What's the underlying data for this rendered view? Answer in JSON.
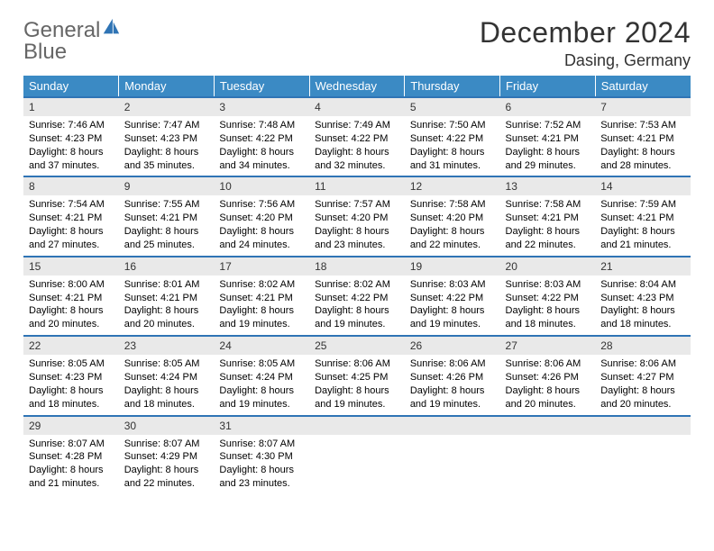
{
  "brand": {
    "word1": "General",
    "word2": "Blue"
  },
  "title": "December 2024",
  "location": "Dasing, Germany",
  "colors": {
    "header_bg": "#3b8ac4",
    "header_text": "#ffffff",
    "rule": "#2f74b5",
    "daynum_bg": "#e9e9e9",
    "text": "#000000",
    "logo_gray": "#666666",
    "logo_blue": "#2f74b5"
  },
  "weekdays": [
    "Sunday",
    "Monday",
    "Tuesday",
    "Wednesday",
    "Thursday",
    "Friday",
    "Saturday"
  ],
  "days": [
    {
      "n": "1",
      "sr": "Sunrise: 7:46 AM",
      "ss": "Sunset: 4:23 PM",
      "d1": "Daylight: 8 hours",
      "d2": "and 37 minutes."
    },
    {
      "n": "2",
      "sr": "Sunrise: 7:47 AM",
      "ss": "Sunset: 4:23 PM",
      "d1": "Daylight: 8 hours",
      "d2": "and 35 minutes."
    },
    {
      "n": "3",
      "sr": "Sunrise: 7:48 AM",
      "ss": "Sunset: 4:22 PM",
      "d1": "Daylight: 8 hours",
      "d2": "and 34 minutes."
    },
    {
      "n": "4",
      "sr": "Sunrise: 7:49 AM",
      "ss": "Sunset: 4:22 PM",
      "d1": "Daylight: 8 hours",
      "d2": "and 32 minutes."
    },
    {
      "n": "5",
      "sr": "Sunrise: 7:50 AM",
      "ss": "Sunset: 4:22 PM",
      "d1": "Daylight: 8 hours",
      "d2": "and 31 minutes."
    },
    {
      "n": "6",
      "sr": "Sunrise: 7:52 AM",
      "ss": "Sunset: 4:21 PM",
      "d1": "Daylight: 8 hours",
      "d2": "and 29 minutes."
    },
    {
      "n": "7",
      "sr": "Sunrise: 7:53 AM",
      "ss": "Sunset: 4:21 PM",
      "d1": "Daylight: 8 hours",
      "d2": "and 28 minutes."
    },
    {
      "n": "8",
      "sr": "Sunrise: 7:54 AM",
      "ss": "Sunset: 4:21 PM",
      "d1": "Daylight: 8 hours",
      "d2": "and 27 minutes."
    },
    {
      "n": "9",
      "sr": "Sunrise: 7:55 AM",
      "ss": "Sunset: 4:21 PM",
      "d1": "Daylight: 8 hours",
      "d2": "and 25 minutes."
    },
    {
      "n": "10",
      "sr": "Sunrise: 7:56 AM",
      "ss": "Sunset: 4:20 PM",
      "d1": "Daylight: 8 hours",
      "d2": "and 24 minutes."
    },
    {
      "n": "11",
      "sr": "Sunrise: 7:57 AM",
      "ss": "Sunset: 4:20 PM",
      "d1": "Daylight: 8 hours",
      "d2": "and 23 minutes."
    },
    {
      "n": "12",
      "sr": "Sunrise: 7:58 AM",
      "ss": "Sunset: 4:20 PM",
      "d1": "Daylight: 8 hours",
      "d2": "and 22 minutes."
    },
    {
      "n": "13",
      "sr": "Sunrise: 7:58 AM",
      "ss": "Sunset: 4:21 PM",
      "d1": "Daylight: 8 hours",
      "d2": "and 22 minutes."
    },
    {
      "n": "14",
      "sr": "Sunrise: 7:59 AM",
      "ss": "Sunset: 4:21 PM",
      "d1": "Daylight: 8 hours",
      "d2": "and 21 minutes."
    },
    {
      "n": "15",
      "sr": "Sunrise: 8:00 AM",
      "ss": "Sunset: 4:21 PM",
      "d1": "Daylight: 8 hours",
      "d2": "and 20 minutes."
    },
    {
      "n": "16",
      "sr": "Sunrise: 8:01 AM",
      "ss": "Sunset: 4:21 PM",
      "d1": "Daylight: 8 hours",
      "d2": "and 20 minutes."
    },
    {
      "n": "17",
      "sr": "Sunrise: 8:02 AM",
      "ss": "Sunset: 4:21 PM",
      "d1": "Daylight: 8 hours",
      "d2": "and 19 minutes."
    },
    {
      "n": "18",
      "sr": "Sunrise: 8:02 AM",
      "ss": "Sunset: 4:22 PM",
      "d1": "Daylight: 8 hours",
      "d2": "and 19 minutes."
    },
    {
      "n": "19",
      "sr": "Sunrise: 8:03 AM",
      "ss": "Sunset: 4:22 PM",
      "d1": "Daylight: 8 hours",
      "d2": "and 19 minutes."
    },
    {
      "n": "20",
      "sr": "Sunrise: 8:03 AM",
      "ss": "Sunset: 4:22 PM",
      "d1": "Daylight: 8 hours",
      "d2": "and 18 minutes."
    },
    {
      "n": "21",
      "sr": "Sunrise: 8:04 AM",
      "ss": "Sunset: 4:23 PM",
      "d1": "Daylight: 8 hours",
      "d2": "and 18 minutes."
    },
    {
      "n": "22",
      "sr": "Sunrise: 8:05 AM",
      "ss": "Sunset: 4:23 PM",
      "d1": "Daylight: 8 hours",
      "d2": "and 18 minutes."
    },
    {
      "n": "23",
      "sr": "Sunrise: 8:05 AM",
      "ss": "Sunset: 4:24 PM",
      "d1": "Daylight: 8 hours",
      "d2": "and 18 minutes."
    },
    {
      "n": "24",
      "sr": "Sunrise: 8:05 AM",
      "ss": "Sunset: 4:24 PM",
      "d1": "Daylight: 8 hours",
      "d2": "and 19 minutes."
    },
    {
      "n": "25",
      "sr": "Sunrise: 8:06 AM",
      "ss": "Sunset: 4:25 PM",
      "d1": "Daylight: 8 hours",
      "d2": "and 19 minutes."
    },
    {
      "n": "26",
      "sr": "Sunrise: 8:06 AM",
      "ss": "Sunset: 4:26 PM",
      "d1": "Daylight: 8 hours",
      "d2": "and 19 minutes."
    },
    {
      "n": "27",
      "sr": "Sunrise: 8:06 AM",
      "ss": "Sunset: 4:26 PM",
      "d1": "Daylight: 8 hours",
      "d2": "and 20 minutes."
    },
    {
      "n": "28",
      "sr": "Sunrise: 8:06 AM",
      "ss": "Sunset: 4:27 PM",
      "d1": "Daylight: 8 hours",
      "d2": "and 20 minutes."
    },
    {
      "n": "29",
      "sr": "Sunrise: 8:07 AM",
      "ss": "Sunset: 4:28 PM",
      "d1": "Daylight: 8 hours",
      "d2": "and 21 minutes."
    },
    {
      "n": "30",
      "sr": "Sunrise: 8:07 AM",
      "ss": "Sunset: 4:29 PM",
      "d1": "Daylight: 8 hours",
      "d2": "and 22 minutes."
    },
    {
      "n": "31",
      "sr": "Sunrise: 8:07 AM",
      "ss": "Sunset: 4:30 PM",
      "d1": "Daylight: 8 hours",
      "d2": "and 23 minutes."
    }
  ]
}
